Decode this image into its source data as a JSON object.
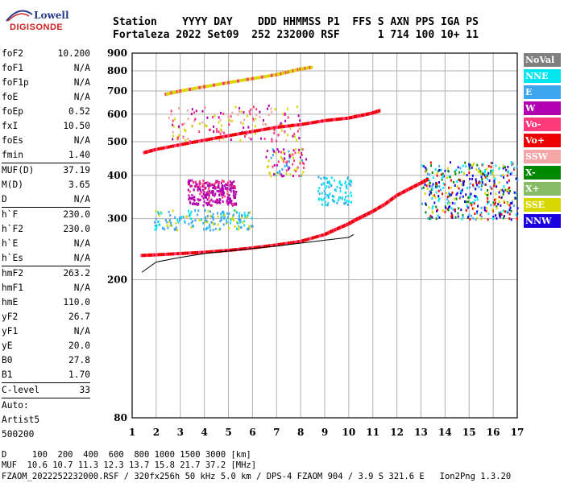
{
  "logo": {
    "line1": "Lowell",
    "line2": "DIGISONDE"
  },
  "header": {
    "line1": "Station    YYYY DAY    DDD HHMMSS P1  FFS S AXN PPS IGA PS",
    "line2": "Fortaleza 2022 Set09  252 232000 RSF      1 714 100 10+ 11"
  },
  "params": [
    {
      "label": "foF2",
      "value": "10.200"
    },
    {
      "label": "foF1",
      "value": "N/A"
    },
    {
      "label": "foF1p",
      "value": "N/A"
    },
    {
      "label": "foE",
      "value": "N/A"
    },
    {
      "label": "foEp",
      "value": "0.52"
    },
    {
      "label": "fxI",
      "value": "10.50"
    },
    {
      "label": "foEs",
      "value": "N/A"
    },
    {
      "label": "fmin",
      "value": "1.40"
    },
    {
      "label": "MUF(D)",
      "value": "37.19",
      "sep": true
    },
    {
      "label": "M(D)",
      "value": "3.65"
    },
    {
      "label": "D",
      "value": "N/A"
    },
    {
      "label": "h`F",
      "value": "230.0",
      "sep": true
    },
    {
      "label": "h`F2",
      "value": "230.0"
    },
    {
      "label": "h`E",
      "value": "N/A"
    },
    {
      "label": "h`Es",
      "value": "N/A"
    },
    {
      "label": "hmF2",
      "value": "263.2",
      "sep": true
    },
    {
      "label": "hmF1",
      "value": "N/A"
    },
    {
      "label": "hmE",
      "value": "110.0"
    },
    {
      "label": "yF2",
      "value": "26.7"
    },
    {
      "label": "yF1",
      "value": "N/A"
    },
    {
      "label": "yE",
      "value": "20.0"
    },
    {
      "label": "B0",
      "value": "27.8"
    },
    {
      "label": "B1",
      "value": "1.70"
    },
    {
      "label": "C-level",
      "value": "33",
      "sep": true
    },
    {
      "label": "Auto:",
      "value": "",
      "sep": true
    },
    {
      "label": "Artist5",
      "value": ""
    },
    {
      "label": "500200",
      "value": ""
    }
  ],
  "footer": {
    "line1": "D     100  200  400  600  800 1000 1500 3000 [km]",
    "line2": "MUF  10.6 10.7 11.3 12.3 13.7 15.8 21.7 37.2 [MHz]",
    "line3": "FZAOM_2022252232000.RSF / 320fx256h 50 kHz 5.0 km / DPS-4 FZAOM 904 / 3.9 S 321.6 E   Ion2Png 1.3.20"
  },
  "legend": [
    {
      "label": "NoVal",
      "color": "#7f7f7f"
    },
    {
      "label": "NNE",
      "color": "#00e5ee"
    },
    {
      "label": "E",
      "color": "#3ea6f0"
    },
    {
      "label": "W",
      "color": "#b000b0"
    },
    {
      "label": "Vo-",
      "color": "#ff3a7a"
    },
    {
      "label": "Vo+",
      "color": "#ee0000"
    },
    {
      "label": "SSW",
      "color": "#f4a6a6"
    },
    {
      "label": "X-",
      "color": "#008800"
    },
    {
      "label": "X+",
      "color": "#88bb66"
    },
    {
      "label": "SSE",
      "color": "#d8d800"
    },
    {
      "label": "NNW",
      "color": "#1a00e0"
    }
  ],
  "chart_data": {
    "type": "scatter",
    "title": "",
    "xlabel": "",
    "ylabel": "",
    "xlim": [
      1,
      17
    ],
    "ylim": [
      80,
      900
    ],
    "y_scale": "log",
    "x_ticks": [
      1,
      2,
      3,
      4,
      5,
      6,
      7,
      8,
      9,
      10,
      11,
      12,
      13,
      14,
      15,
      16,
      17
    ],
    "y_ticks": [
      80,
      200,
      300,
      400,
      500,
      600,
      700,
      800,
      900
    ],
    "grid": true,
    "series": [
      {
        "name": "Vo+",
        "x": [
          1.4,
          2.0,
          3.0,
          4.0,
          5.0,
          6.0,
          7.0,
          8.0,
          9.0,
          9.5,
          10.0,
          10.3,
          10.6,
          11.0,
          11.5,
          12.0,
          12.5,
          13.0,
          13.3
        ],
        "y": [
          235,
          236,
          238,
          240,
          243,
          247,
          252,
          258,
          270,
          280,
          290,
          298,
          305,
          315,
          330,
          350,
          365,
          380,
          390
        ]
      },
      {
        "name": "Vo+",
        "x": [
          1.5,
          2,
          3,
          4,
          5,
          6,
          7,
          8,
          9,
          10,
          10.5,
          11.0,
          11.3
        ],
        "y": [
          465,
          475,
          490,
          505,
          520,
          535,
          550,
          560,
          575,
          585,
          595,
          605,
          615
        ]
      },
      {
        "name": "SSE",
        "x": [
          2.4,
          3,
          4,
          5,
          6,
          7,
          7.5,
          8.0,
          8.5
        ],
        "y": [
          685,
          700,
          720,
          740,
          760,
          780,
          795,
          810,
          820
        ]
      }
    ],
    "profile_x": [
      1.4,
      2,
      3,
      4,
      5,
      6,
      7,
      8,
      9,
      10,
      10.2
    ],
    "profile_y": [
      210,
      225,
      232,
      238,
      242,
      246,
      250,
      255,
      260,
      265,
      270
    ]
  }
}
